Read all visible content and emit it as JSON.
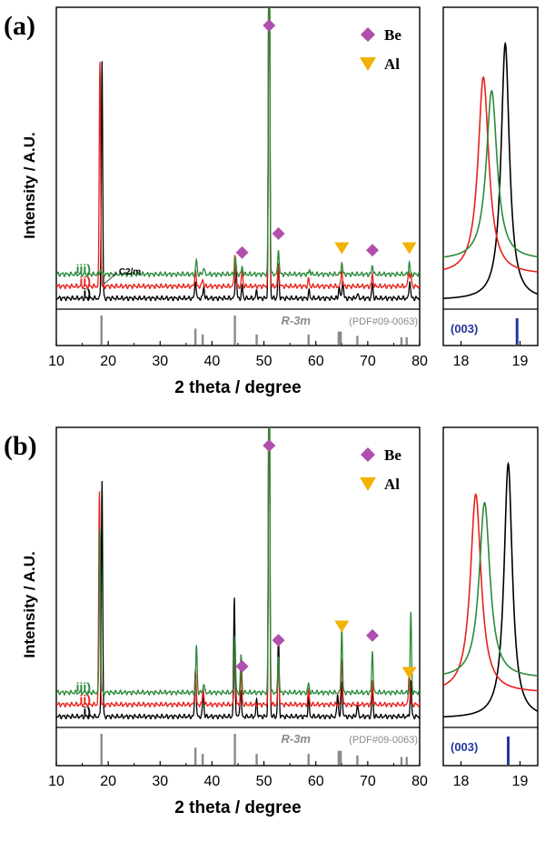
{
  "chart_data": [
    {
      "type": "line",
      "panel_label": "(a)",
      "xlabel": "2 theta / degree",
      "ylabel": "Intensity / A.U.",
      "xlim": [
        10,
        80
      ],
      "xticks": [
        "10",
        "20",
        "30",
        "40",
        "50",
        "60",
        "70",
        "80"
      ],
      "legend": [
        {
          "label": "Be",
          "marker": "diamond",
          "color": "#b04fae"
        },
        {
          "label": "Al",
          "marker": "triangle-down",
          "color": "#f2b200"
        }
      ],
      "series": [
        {
          "name": "i)",
          "color": "#000000",
          "offset": 0,
          "peaks": [
            [
              18.8,
              100
            ],
            [
              36.8,
              8
            ],
            [
              38.4,
              5
            ],
            [
              44.6,
              15
            ],
            [
              45.8,
              5
            ],
            [
              48.6,
              3
            ],
            [
              51,
              180
            ],
            [
              52.8,
              14
            ],
            [
              58.7,
              3
            ],
            [
              64.5,
              5
            ],
            [
              65.2,
              8
            ],
            [
              68,
              2
            ],
            [
              70.9,
              6
            ],
            [
              78.1,
              8
            ]
          ]
        },
        {
          "name": "ii)",
          "color": "#e8211b",
          "offset": 12,
          "peaks": [
            [
              18.4,
              95
            ],
            [
              36.8,
              7
            ],
            [
              38.2,
              3
            ],
            [
              44.4,
              14
            ],
            [
              45.8,
              6
            ],
            [
              51,
              180
            ],
            [
              52.8,
              9
            ],
            [
              58.6,
              3
            ],
            [
              65,
              7
            ],
            [
              70.9,
              5
            ],
            [
              77.9,
              7
            ],
            [
              78.3,
              5
            ]
          ]
        },
        {
          "name": "iii)",
          "color": "#2a8a3a",
          "offset": 24,
          "peaks": [
            [
              18.5,
              2
            ],
            [
              37,
              6
            ],
            [
              38.4,
              3
            ],
            [
              44.5,
              7
            ],
            [
              45.8,
              3
            ],
            [
              51,
              170
            ],
            [
              52.8,
              11
            ],
            [
              58.8,
              2
            ],
            [
              65,
              5
            ],
            [
              70.9,
              4
            ],
            [
              78,
              5
            ]
          ]
        }
      ],
      "annotations": [
        {
          "text": "C2/m",
          "x": 20.3,
          "series": "i)"
        }
      ],
      "markers": [
        {
          "kind": "Be",
          "x": 45.8
        },
        {
          "kind": "Be",
          "x": 51
        },
        {
          "kind": "Be",
          "x": 52.8
        },
        {
          "kind": "Be",
          "x": 70.9
        },
        {
          "kind": "Al",
          "x": 65
        },
        {
          "kind": "Al",
          "x": 78
        }
      ],
      "reference": {
        "label_phase": "R-3m",
        "label_pdf": "(PDF#09-0063)",
        "sticks": [
          [
            18.7,
            100
          ],
          [
            36.8,
            55
          ],
          [
            38.2,
            35
          ],
          [
            44.4,
            100
          ],
          [
            48.6,
            35
          ],
          [
            58.6,
            35
          ],
          [
            64.4,
            45
          ],
          [
            64.8,
            45
          ],
          [
            68.0,
            30
          ],
          [
            76.5,
            25
          ],
          [
            77.5,
            25
          ]
        ]
      },
      "inset": {
        "xlim": [
          17.7,
          19.3
        ],
        "xticks": [
          "18",
          "19"
        ],
        "peak_label": "(003)",
        "stick_x": 18.95,
        "peaks": [
          {
            "name": "i)",
            "center": 18.75,
            "width": 0.085,
            "height": 100
          },
          {
            "name": "ii)",
            "center": 18.38,
            "width": 0.11,
            "height": 77
          },
          {
            "name": "iii)",
            "center": 18.52,
            "width": 0.11,
            "height": 66
          }
        ]
      }
    },
    {
      "type": "line",
      "panel_label": "(b)",
      "xlabel": "2 theta / degree",
      "ylabel": "Intensity / A.U.",
      "xlim": [
        10,
        80
      ],
      "xticks": [
        "10",
        "20",
        "30",
        "40",
        "50",
        "60",
        "70",
        "80"
      ],
      "legend": [
        {
          "label": "Be",
          "marker": "diamond",
          "color": "#b04fae"
        },
        {
          "label": "Al",
          "marker": "triangle-down",
          "color": "#f2b200"
        }
      ],
      "series": [
        {
          "name": "i)",
          "color": "#000000",
          "offset": 0,
          "peaks": [
            [
              18.8,
              100
            ],
            [
              36.8,
              20
            ],
            [
              38.3,
              10
            ],
            [
              44.3,
              50
            ],
            [
              45.5,
              12
            ],
            [
              48.6,
              7
            ],
            [
              51,
              170
            ],
            [
              52.8,
              34
            ],
            [
              58.6,
              8
            ],
            [
              64.2,
              10
            ],
            [
              65,
              15
            ],
            [
              68,
              5
            ],
            [
              70.9,
              12
            ],
            [
              78.3,
              15
            ]
          ]
        },
        {
          "name": "ii)",
          "color": "#e8211b",
          "offset": 12,
          "peaks": [
            [
              18.3,
              90
            ],
            [
              36.8,
              15
            ],
            [
              38.3,
              7
            ],
            [
              44.4,
              28
            ],
            [
              45.6,
              14
            ],
            [
              51,
              170
            ],
            [
              52.8,
              20
            ],
            [
              58.6,
              6
            ],
            [
              65,
              20
            ],
            [
              70.9,
              10
            ],
            [
              78,
              16
            ]
          ]
        },
        {
          "name": "iii)",
          "color": "#2a8a3a",
          "offset": 24,
          "peaks": [
            [
              18.4,
              70
            ],
            [
              37,
              20
            ],
            [
              38.4,
              4
            ],
            [
              44.4,
              24
            ],
            [
              45.6,
              16
            ],
            [
              51,
              170
            ],
            [
              52.8,
              16
            ],
            [
              58.6,
              4
            ],
            [
              65,
              28
            ],
            [
              70.9,
              18
            ],
            [
              78.3,
              34
            ]
          ]
        }
      ],
      "annotations": [],
      "markers": [
        {
          "kind": "Be",
          "x": 45.8
        },
        {
          "kind": "Be",
          "x": 51
        },
        {
          "kind": "Be",
          "x": 52.8
        },
        {
          "kind": "Be",
          "x": 70.9
        },
        {
          "kind": "Al",
          "x": 65
        },
        {
          "kind": "Al",
          "x": 78
        }
      ],
      "reference": {
        "label_phase": "R-3m",
        "label_pdf": "(PDF#09-0063)",
        "sticks": [
          [
            18.7,
            100
          ],
          [
            36.8,
            55
          ],
          [
            38.2,
            35
          ],
          [
            44.4,
            100
          ],
          [
            48.6,
            35
          ],
          [
            58.6,
            35
          ],
          [
            64.4,
            45
          ],
          [
            64.8,
            45
          ],
          [
            68.0,
            30
          ],
          [
            76.5,
            25
          ],
          [
            77.5,
            25
          ]
        ]
      },
      "inset": {
        "xlim": [
          17.7,
          19.3
        ],
        "xticks": [
          "18",
          "19"
        ],
        "peak_label": "(003)",
        "stick_x": 18.8,
        "peaks": [
          {
            "name": "i)",
            "center": 18.8,
            "width": 0.085,
            "height": 100
          },
          {
            "name": "ii)",
            "center": 18.25,
            "width": 0.11,
            "height": 78
          },
          {
            "name": "iii)",
            "center": 18.4,
            "width": 0.11,
            "height": 69
          }
        ]
      }
    }
  ]
}
